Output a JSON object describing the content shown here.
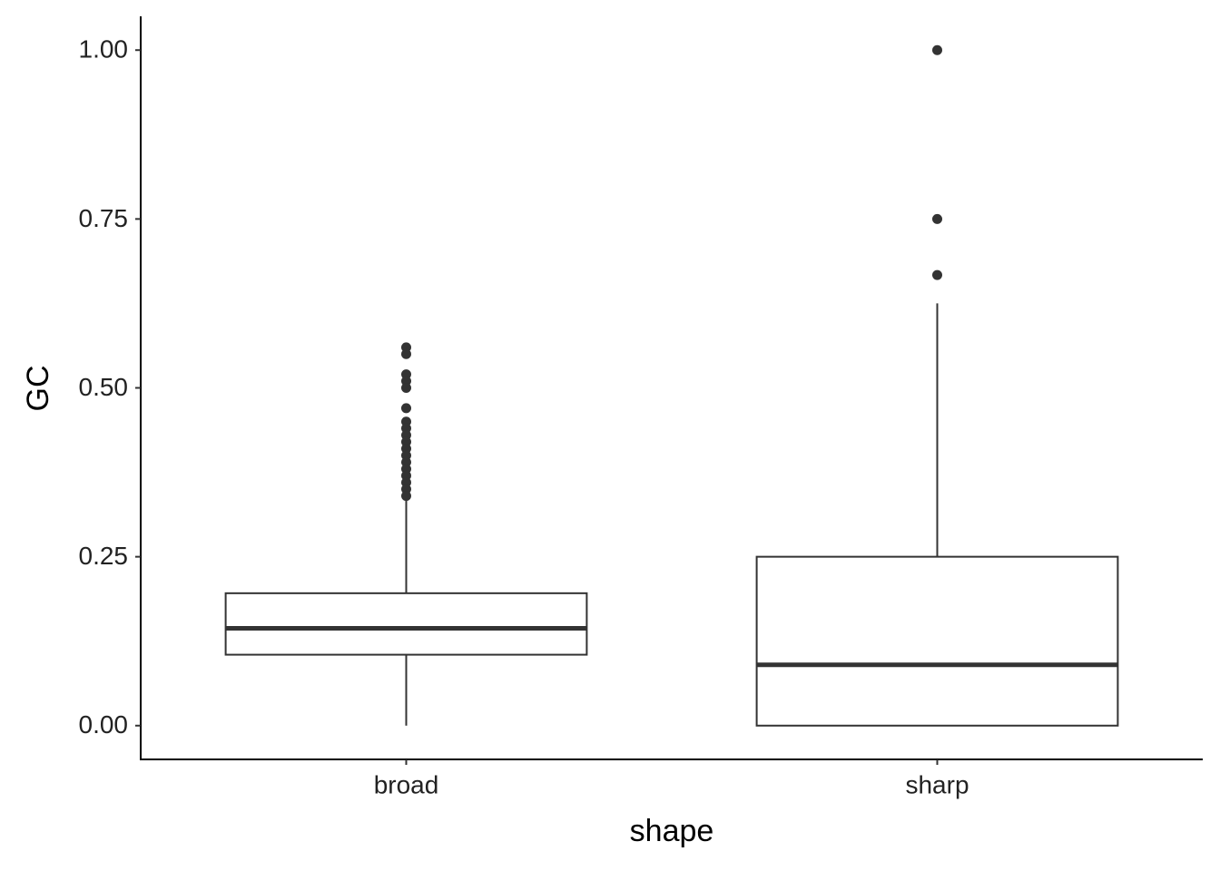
{
  "chart_data": {
    "type": "box",
    "x_label": "shape",
    "y_label": "GC",
    "categories": [
      "broad",
      "sharp"
    ],
    "boxes": [
      {
        "whislo": 0,
        "q1": 0.105,
        "med": 0.144,
        "q3": 0.196,
        "whishi": 0.333,
        "fliers": [
          0.56,
          0.55,
          0.52,
          0.51,
          0.5,
          0.47,
          0.45,
          0.44,
          0.43,
          0.42,
          0.41,
          0.4,
          0.39,
          0.38,
          0.37,
          0.36,
          0.35,
          0.34
        ]
      },
      {
        "whislo": 0,
        "q1": 0,
        "med": 0.09,
        "q3": 0.25,
        "whishi": 0.625,
        "fliers": [
          0.667,
          0.75,
          1.0
        ]
      }
    ],
    "color": "#333333",
    "fill": "#ffffff",
    "ylim": [
      -0.05,
      1.05
    ],
    "yticks": [
      {
        "value": 0,
        "label": "0.00"
      },
      {
        "value": 0.25,
        "label": "0.25"
      },
      {
        "value": 0.5,
        "label": "0.50"
      },
      {
        "value": 0.75,
        "label": "0.75"
      },
      {
        "value": 1,
        "label": "1.00"
      }
    ],
    "grid": false
  }
}
